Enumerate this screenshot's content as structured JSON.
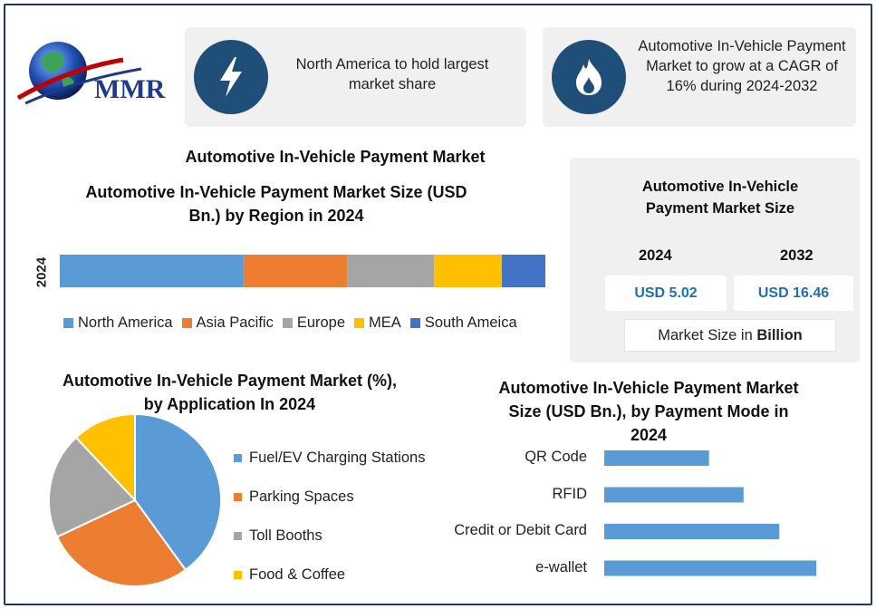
{
  "brand": {
    "logo_text": "MMR"
  },
  "cards": [
    {
      "icon": "lightning-icon",
      "text": "North America to hold largest market share"
    },
    {
      "icon": "flame-icon",
      "text": "Automotive In-Vehicle Payment Market to grow at a CAGR of 16% during 2024-2032"
    }
  ],
  "main_title": "Automotive In-Vehicle Payment Market",
  "colors": {
    "accent": "#1f4e79",
    "blue": "#5b9bd5",
    "orange": "#ed7d31",
    "gray": "#a5a5a5",
    "yellow": "#ffc000",
    "darkblue": "#4472c4"
  },
  "market_size": {
    "title": "Automotive In-Vehicle Payment Market Size",
    "year1": "2024",
    "value1": "USD 5.02",
    "year2": "2032",
    "value2": "USD 16.46",
    "unit_prefix": "Market Size in ",
    "unit_bold": "Billion"
  },
  "chart_data": [
    {
      "type": "bar",
      "orientation": "horizontal-stacked",
      "title": "Automotive In-Vehicle Payment Market Size (USD Bn.) by Region in 2024",
      "category": "2024",
      "legend_position": "bottom",
      "series": [
        {
          "name": "North America",
          "value": 1.9,
          "color": "#5b9bd5"
        },
        {
          "name": "Asia Pacific",
          "value": 1.07,
          "color": "#ed7d31"
        },
        {
          "name": "Europe",
          "value": 0.9,
          "color": "#a5a5a5"
        },
        {
          "name": "MEA",
          "value": 0.7,
          "color": "#ffc000"
        },
        {
          "name": "South Ameica",
          "value": 0.45,
          "color": "#4472c4"
        }
      ]
    },
    {
      "type": "pie",
      "title": "Automotive In-Vehicle Payment Market (%), by Application In 2024",
      "legend_position": "right",
      "slices": [
        {
          "name": "Fuel/EV Charging Stations",
          "value": 40,
          "color": "#5b9bd5"
        },
        {
          "name": "Parking Spaces",
          "value": 28,
          "color": "#ed7d31"
        },
        {
          "name": "Toll Booths",
          "value": 20,
          "color": "#a5a5a5"
        },
        {
          "name": "Food & Coffee",
          "value": 12,
          "color": "#ffc000"
        }
      ]
    },
    {
      "type": "bar",
      "orientation": "horizontal",
      "title": "Automotive In-Vehicle Payment Market Size (USD Bn.), by Payment Mode in 2024",
      "categories": [
        "QR Code",
        "RFID",
        "Credit or Debit Card",
        "e-wallet"
      ],
      "values": [
        0.85,
        1.13,
        1.42,
        1.72
      ],
      "color": "#5b9bd5",
      "grid": false
    }
  ]
}
